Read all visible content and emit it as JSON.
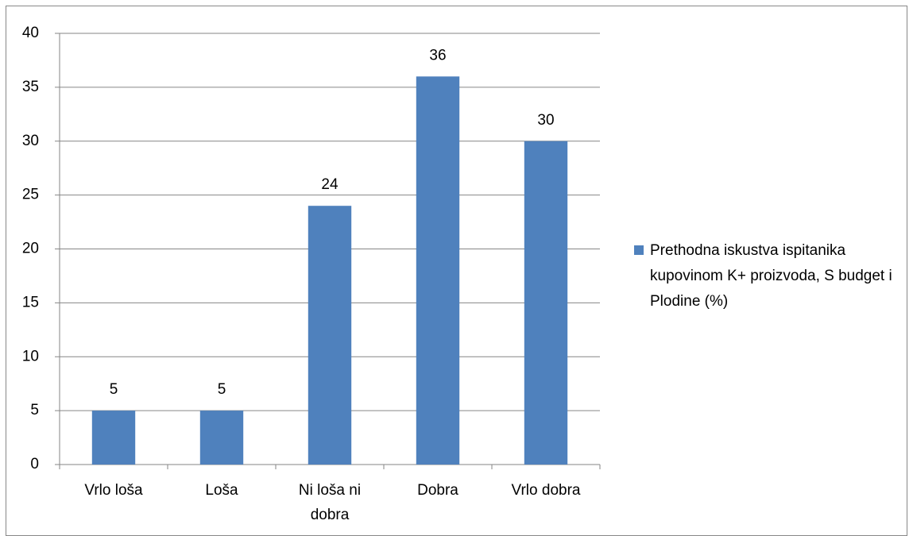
{
  "chart_data": {
    "type": "bar",
    "categories": [
      "Vrlo loša",
      "Loša",
      "Ni loša ni dobra",
      "Dobra",
      "Vrlo dobra"
    ],
    "series": [
      {
        "name": "Prethodna iskustva ispitanika kupovinom K+ proizvoda, S budget i Plodine (%)",
        "color": "#4f81bd",
        "values": [
          5,
          5,
          24,
          36,
          30
        ]
      }
    ],
    "ylim": [
      0,
      40
    ],
    "yticks": [
      0,
      5,
      10,
      15,
      20,
      25,
      30,
      35,
      40
    ],
    "grid": true,
    "legend": "right",
    "data_labels": true
  }
}
